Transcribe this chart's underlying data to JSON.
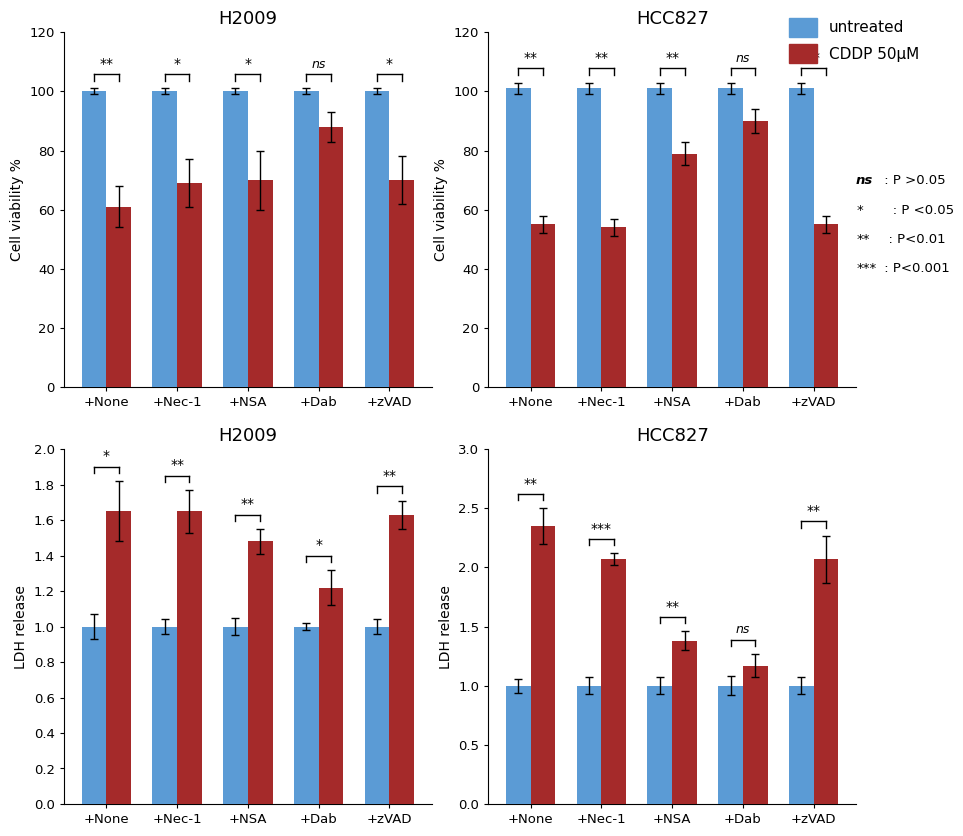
{
  "blue_color": "#5B9BD5",
  "red_color": "#A52A2A",
  "categories": [
    "+None",
    "+Nec-1",
    "+NSA",
    "+Dab",
    "+zVAD"
  ],
  "top_left": {
    "title": "H2009",
    "ylabel": "Cell viability %",
    "ylim": [
      0,
      120
    ],
    "yticks": [
      0,
      20,
      40,
      60,
      80,
      100,
      120
    ],
    "blue_vals": [
      100,
      100,
      100,
      100,
      100
    ],
    "red_vals": [
      61,
      69,
      70,
      88,
      70
    ],
    "blue_err": [
      1,
      1,
      1,
      1,
      1
    ],
    "red_err": [
      7,
      8,
      10,
      5,
      8
    ],
    "sig": [
      "**",
      "*",
      "*",
      "ns",
      "*"
    ]
  },
  "top_right": {
    "title": "HCC827",
    "ylabel": "Cell viability %",
    "ylim": [
      0,
      120
    ],
    "yticks": [
      0,
      20,
      40,
      60,
      80,
      100,
      120
    ],
    "blue_vals": [
      101,
      101,
      101,
      101,
      101
    ],
    "red_vals": [
      55,
      54,
      79,
      90,
      55
    ],
    "blue_err": [
      2,
      2,
      2,
      2,
      2
    ],
    "red_err": [
      3,
      3,
      4,
      4,
      3
    ],
    "sig": [
      "**",
      "**",
      "**",
      "ns",
      "**"
    ]
  },
  "bot_left": {
    "title": "H2009",
    "ylabel": "LDH release",
    "ylim": [
      0,
      2.0
    ],
    "yticks": [
      0.0,
      0.2,
      0.4,
      0.6,
      0.8,
      1.0,
      1.2,
      1.4,
      1.6,
      1.8,
      2.0
    ],
    "blue_vals": [
      1.0,
      1.0,
      1.0,
      1.0,
      1.0
    ],
    "red_vals": [
      1.65,
      1.65,
      1.48,
      1.22,
      1.63
    ],
    "blue_err": [
      0.07,
      0.04,
      0.05,
      0.02,
      0.04
    ],
    "red_err": [
      0.17,
      0.12,
      0.07,
      0.1,
      0.08
    ],
    "sig": [
      "*",
      "**",
      "**",
      "*",
      "**"
    ]
  },
  "bot_right": {
    "title": "HCC827",
    "ylabel": "LDH release",
    "ylim": [
      0,
      3.0
    ],
    "yticks": [
      0.0,
      0.5,
      1.0,
      1.5,
      2.0,
      2.5,
      3.0
    ],
    "blue_vals": [
      1.0,
      1.0,
      1.0,
      1.0,
      1.0
    ],
    "red_vals": [
      2.35,
      2.07,
      1.38,
      1.17,
      2.07
    ],
    "blue_err": [
      0.06,
      0.07,
      0.07,
      0.08,
      0.07
    ],
    "red_err": [
      0.15,
      0.05,
      0.08,
      0.1,
      0.2
    ],
    "sig": [
      "**",
      "***",
      "**",
      "ns",
      "**"
    ]
  },
  "legend_labels": [
    "untreated",
    "CDDP 50μM"
  ],
  "sig_legend_lines": [
    [
      "ns",
      " : P >0.05"
    ],
    [
      "*",
      "   : P <0.05"
    ],
    [
      "**",
      "  : P<0.01"
    ],
    [
      "***",
      " : P<0.001"
    ]
  ]
}
